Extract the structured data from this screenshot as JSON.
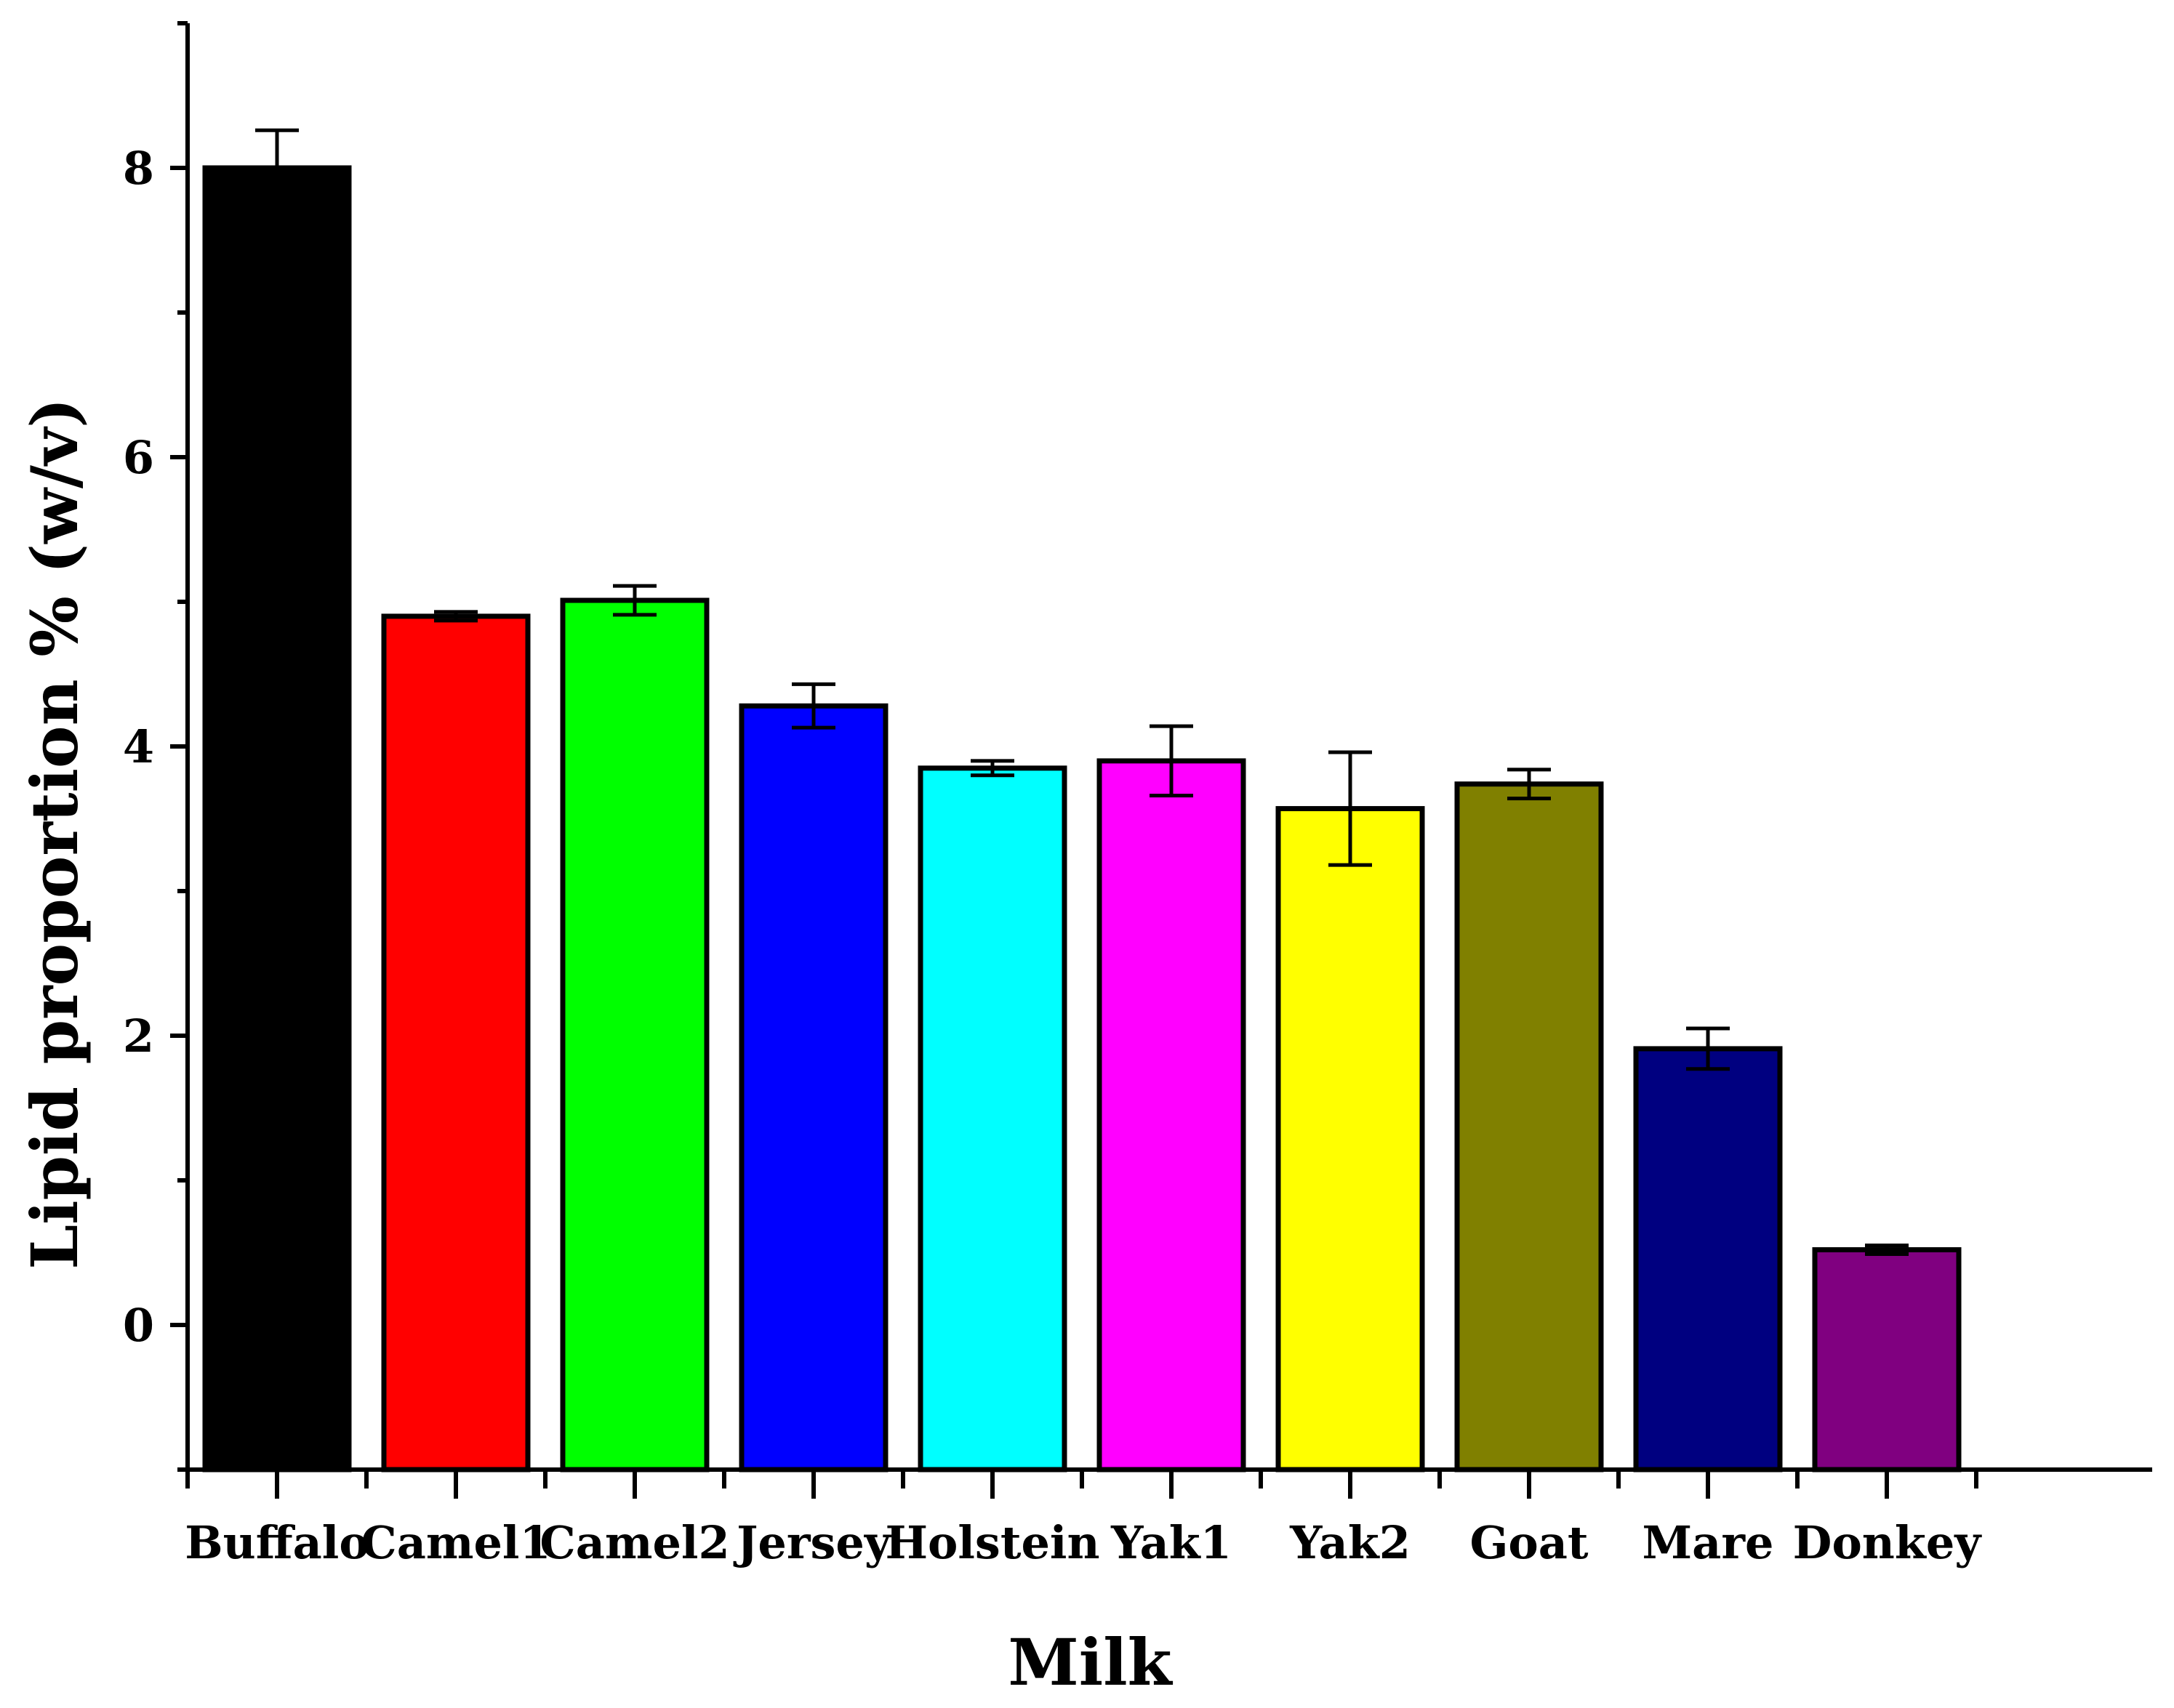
{
  "chart_data": {
    "type": "bar",
    "title": "",
    "xlabel": "Milk",
    "ylabel": "Lipid proportion % (w/v)",
    "ylim": [
      -1,
      9
    ],
    "yticks": [
      "0",
      "2",
      "4",
      "6",
      "8"
    ],
    "grid": false,
    "categories": [
      "Buffalo",
      "Camel1",
      "Camel2",
      "Jersey",
      "Holstein",
      "Yak1",
      "Yak2",
      "Goat",
      "Mare",
      "Donkey"
    ],
    "values": [
      8.0,
      4.9,
      5.01,
      4.28,
      3.85,
      3.9,
      3.57,
      3.74,
      1.91,
      0.52
    ],
    "errors": [
      0.26,
      0.03,
      0.1,
      0.15,
      0.05,
      0.24,
      0.39,
      0.1,
      0.14,
      0.03
    ],
    "colors": [
      "#000000",
      "#ff0000",
      "#00ff00",
      "#0000ff",
      "#00ffff",
      "#ff00ff",
      "#ffff00",
      "#808000",
      "#000080",
      "#800080"
    ]
  }
}
